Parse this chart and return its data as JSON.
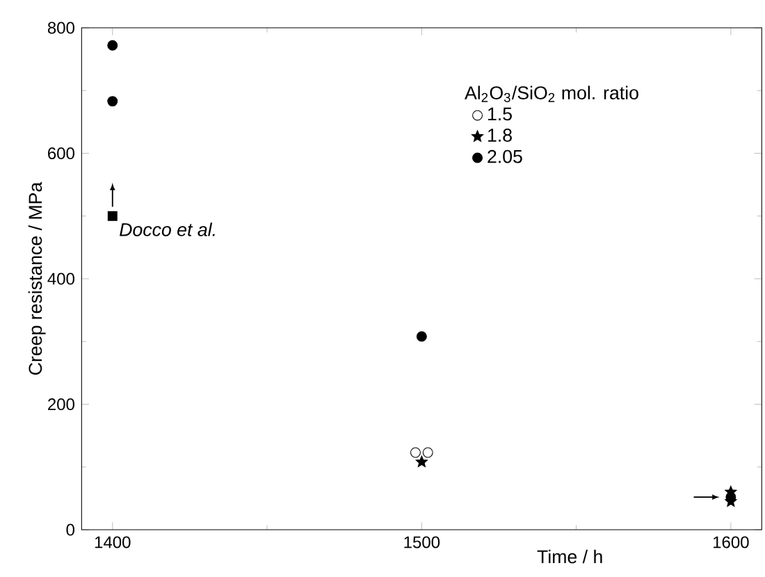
{
  "chart_data": {
    "type": "scatter",
    "xlabel": "Time / h",
    "ylabel": "Creep resistance / MPa",
    "legend_title": "Al$_{2}$O$_{3}$/SiO$_{2}$ mol. ratio",
    "xlim": [
      1390,
      1610
    ],
    "xticks": [
      1400,
      1500,
      1600
    ],
    "ylim": [
      0,
      800
    ],
    "yticks": [
      0,
      200,
      400,
      600,
      800
    ],
    "grid": false,
    "legend": "top right",
    "series": [
      {
        "name": "1.5",
        "color": "#ffffff",
        "marker": "circle",
        "x": [
          1498,
          1502
        ],
        "values": [
          123,
          123
        ]
      },
      {
        "name": "1.8",
        "color": "#000000",
        "marker": "star",
        "x": [
          1500,
          1600,
          1600
        ],
        "values": [
          108,
          60,
          45
        ]
      },
      {
        "name": "2.05",
        "color": "#000000",
        "marker": "circle",
        "x": [
          1400,
          1400,
          1500,
          1600
        ],
        "values": [
          772,
          683,
          308,
          52
        ]
      },
      {
        "name": "Docco et al.",
        "color": "#000000",
        "marker": "square",
        "x": [
          1400
        ],
        "values": [
          500
        ]
      }
    ]
  }
}
